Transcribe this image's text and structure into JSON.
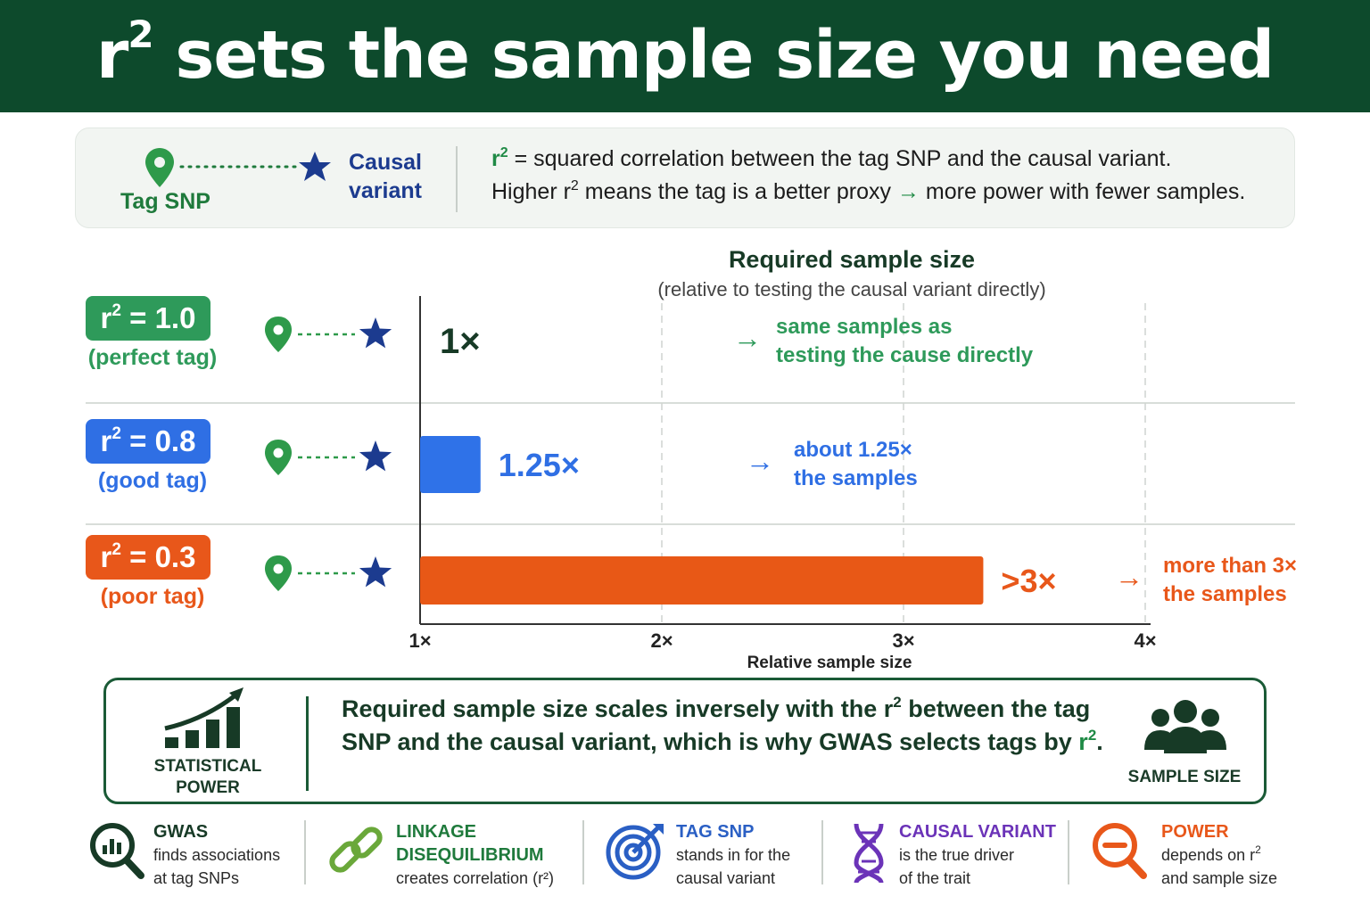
{
  "header": {
    "title_prefix": "r",
    "title_sup": "2",
    "title_rest": " sets the sample size you need"
  },
  "definition": {
    "tag_label": "Tag SNP",
    "causal_label": "Causal variant",
    "line1_r": "r",
    "line1_sup": "2",
    "line1_text": " =  squared correlation between the tag SNP and the causal variant.",
    "line2_a": "Higher r",
    "line2_sup": "2",
    "line2_b": " means the tag is a better proxy ",
    "line2_arrow": "→",
    "line2_c": " more power with fewer samples."
  },
  "chart_data": {
    "type": "bar",
    "title": "Required sample size",
    "subtitle": "(relative to testing the causal variant directly)",
    "xlabel": "Relative sample size",
    "xlim": [
      1,
      4
    ],
    "xticks": [
      "1×",
      "2×",
      "3×",
      "4×"
    ],
    "grid": true,
    "categories": [
      "r² = 1.0 (perfect tag)",
      "r² = 0.8 (good tag)",
      "r² = 0.3 (poor tag)"
    ],
    "values": [
      1.0,
      1.25,
      3.33
    ],
    "rows": [
      {
        "pill_r": "r",
        "pill_sup": "2",
        "pill_val": " = 1.0",
        "sub": "(perfect tag)",
        "color": "#2e9a5a",
        "bar_color": "#4cb97f",
        "value": 1.0,
        "value_label": "1×",
        "note1": "same samples as",
        "note2": "testing the cause directly",
        "arrow": "→"
      },
      {
        "pill_r": "r",
        "pill_sup": "2",
        "pill_val": " = 0.8",
        "sub": "(good tag)",
        "color": "#2f6fe4",
        "bar_color": "#2f72e8",
        "value": 1.25,
        "value_label": "1.25×",
        "note1": "about 1.25×",
        "note2": "the samples",
        "arrow": "→"
      },
      {
        "pill_r": "r",
        "pill_sup": "2",
        "pill_val": " = 0.3",
        "sub": "(poor tag)",
        "color": "#e8571a",
        "bar_color": "#e85816",
        "value": 3.33,
        "value_label": ">3×",
        "note1": "more than 3×",
        "note2": "the samples",
        "arrow": "→"
      }
    ]
  },
  "summary": {
    "left_label_1": "STATISTICAL",
    "left_label_2": "POWER",
    "text_a": "Required sample size scales inversely with the r",
    "text_sup1": "2",
    "text_b": " between the tag SNP and the causal variant, which is why GWAS selects tags by ",
    "text_r": "r",
    "text_sup2": "2",
    "text_end": ".",
    "right_label": "SAMPLE SIZE"
  },
  "footer": [
    {
      "title": "GWAS",
      "desc1": "finds associations",
      "desc2": "at tag SNPs",
      "color": "#173a26",
      "icon": "magnifier-chart-icon"
    },
    {
      "title": "LINKAGE",
      "title2": "DISEQUILIBRIUM",
      "desc1": "creates correlation (r²)",
      "color": "#1f7a3c",
      "icon": "chain-link-icon"
    },
    {
      "title": "TAG SNP",
      "desc1": "stands in for the",
      "desc2": "causal variant",
      "color": "#2a5fc4",
      "icon": "target-icon"
    },
    {
      "title": "CAUSAL VARIANT",
      "desc1": "is the true driver",
      "desc2": "of the trait",
      "color": "#6b33b8",
      "icon": "dna-icon"
    },
    {
      "title": "POWER",
      "desc1a": "depends on r",
      "desc1sup": "2",
      "desc2": "and sample size",
      "color": "#e8571a",
      "icon": "magnifier-minus-icon"
    }
  ]
}
